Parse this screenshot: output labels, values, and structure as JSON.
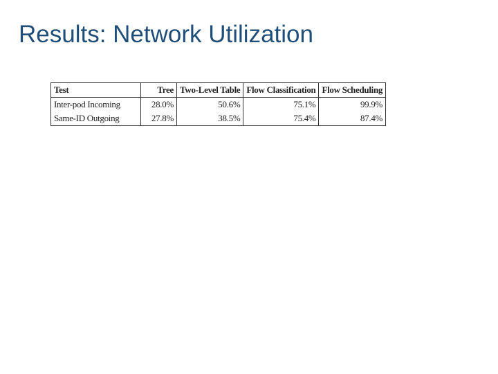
{
  "header": {
    "title": "Results: Network Utilization"
  },
  "table": {
    "columns": [
      "Test",
      "Tree",
      "Two-Level Table",
      "Flow Classification",
      "Flow Scheduling"
    ],
    "rows": [
      [
        "Inter-pod Incoming",
        "28.0%",
        "50.6%",
        "75.1%",
        "99.9%"
      ],
      [
        "Same-ID Outgoing",
        "27.8%",
        "38.5%",
        "75.4%",
        "87.4%"
      ]
    ]
  }
}
